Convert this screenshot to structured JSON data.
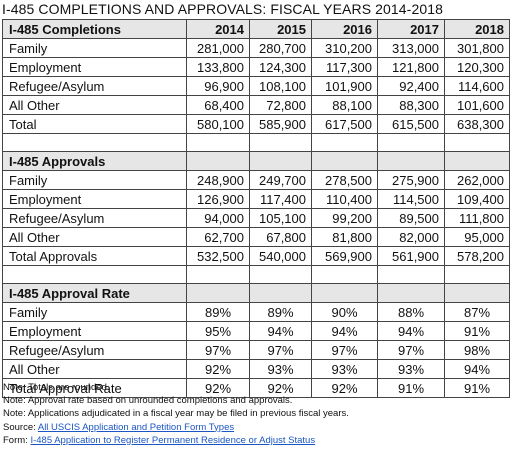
{
  "title": "I-485 COMPLETIONS AND APPROVALS: FISCAL YEARS 2014-2018",
  "years": [
    "2014",
    "2015",
    "2016",
    "2017",
    "2018"
  ],
  "completions": {
    "heading": "I-485 Completions",
    "rows": [
      {
        "label": "Family",
        "values": [
          "281,000",
          "280,700",
          "310,200",
          "313,000",
          "301,800"
        ]
      },
      {
        "label": "Employment",
        "values": [
          "133,800",
          "124,300",
          "117,300",
          "121,800",
          "120,300"
        ]
      },
      {
        "label": "Refugee/Asylum",
        "values": [
          "96,900",
          "108,100",
          "101,900",
          "92,400",
          "114,600"
        ]
      },
      {
        "label": "All Other",
        "values": [
          "68,400",
          "72,800",
          "88,100",
          "88,300",
          "101,600"
        ]
      },
      {
        "label": "Total",
        "values": [
          "580,100",
          "585,900",
          "617,500",
          "615,500",
          "638,300"
        ]
      }
    ]
  },
  "approvals": {
    "heading": "I-485 Approvals",
    "rows": [
      {
        "label": "Family",
        "values": [
          "248,900",
          "249,700",
          "278,500",
          "275,900",
          "262,000"
        ]
      },
      {
        "label": "Employment",
        "values": [
          "126,900",
          "117,400",
          "110,400",
          "114,500",
          "109,400"
        ]
      },
      {
        "label": "Refugee/Asylum",
        "values": [
          "94,000",
          "105,100",
          "99,200",
          "89,500",
          "111,800"
        ]
      },
      {
        "label": "All Other",
        "values": [
          "62,700",
          "67,800",
          "81,800",
          "82,000",
          "95,000"
        ]
      },
      {
        "label": "Total Approvals",
        "values": [
          "532,500",
          "540,000",
          "569,900",
          "561,900",
          "578,200"
        ]
      }
    ]
  },
  "rates": {
    "heading": "I-485 Approval Rate",
    "rows": [
      {
        "label": "Family",
        "values": [
          "89%",
          "89%",
          "90%",
          "88%",
          "87%"
        ]
      },
      {
        "label": "Employment",
        "values": [
          "95%",
          "94%",
          "94%",
          "94%",
          "91%"
        ]
      },
      {
        "label": "Refugee/Asylum",
        "values": [
          "97%",
          "97%",
          "97%",
          "97%",
          "98%"
        ]
      },
      {
        "label": "All Other",
        "values": [
          "92%",
          "93%",
          "93%",
          "93%",
          "94%"
        ]
      },
      {
        "label": "Total Approval Rate",
        "values": [
          "92%",
          "92%",
          "92%",
          "91%",
          "91%"
        ]
      }
    ]
  },
  "notes": [
    "Note: Totals are rounded.",
    "Note: Approval rate based on unrounded completions and approvals.",
    "Note: Applications adjudicated in a fiscal year may be filed in previous fiscal years."
  ],
  "source": {
    "prefix": "Source: ",
    "link_text": "All USCIS Application and Petition Form Types"
  },
  "form": {
    "prefix": "Form: ",
    "link_text": "I-485 Application to Register Permanent Residence or Adjust Status"
  }
}
